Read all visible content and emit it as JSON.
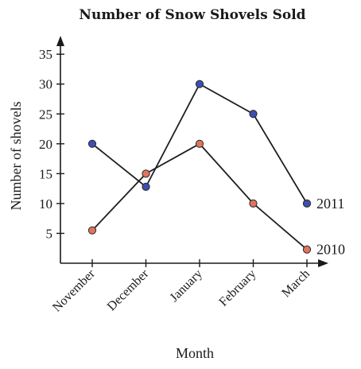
{
  "chart_data": {
    "type": "line",
    "title": "Number of Snow Shovels Sold",
    "xlabel": "Month",
    "ylabel": "Number of shovels",
    "categories": [
      "November",
      "December",
      "January",
      "February",
      "March"
    ],
    "yticks": [
      5,
      10,
      15,
      20,
      25,
      30,
      35
    ],
    "ylim": [
      0,
      37
    ],
    "grid": false,
    "legend": "inline labels at line ends",
    "series": [
      {
        "name": "2011",
        "values": [
          20,
          12.8,
          30,
          25,
          10
        ],
        "color": "#3d4fb0"
      },
      {
        "name": "2010",
        "values": [
          5.5,
          15,
          20,
          10,
          2.3
        ],
        "color": "#e0745e"
      }
    ]
  }
}
